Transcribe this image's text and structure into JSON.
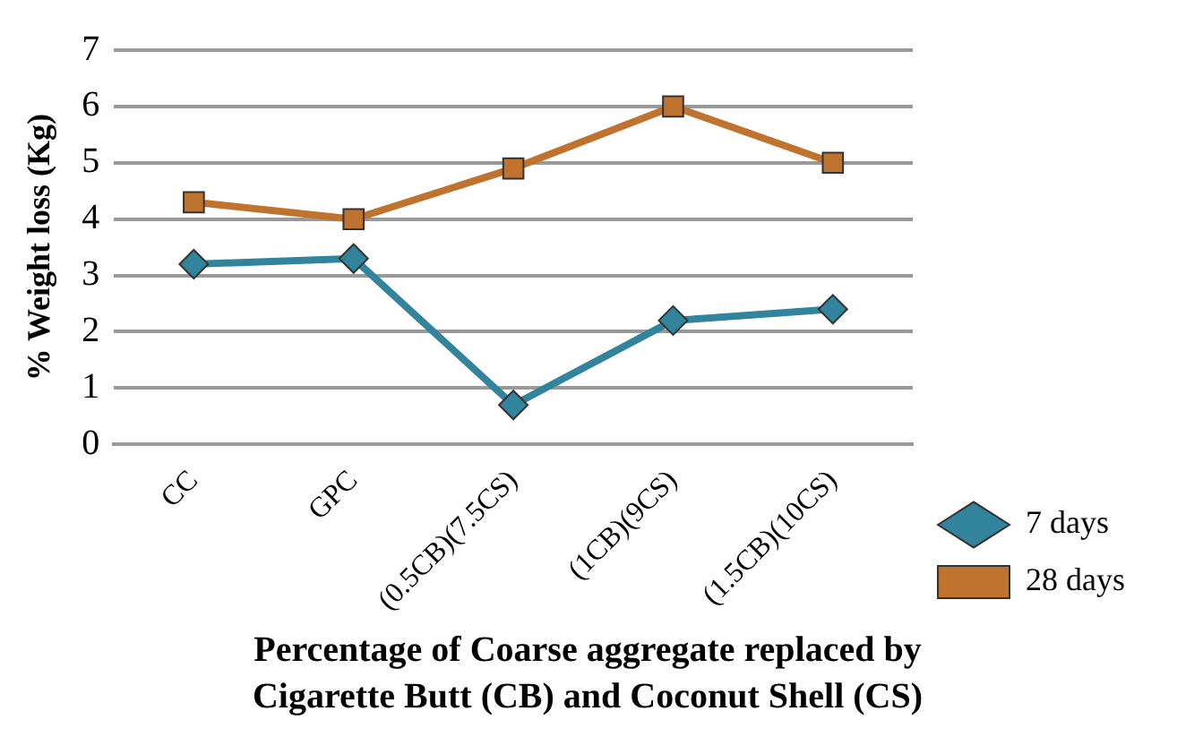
{
  "chart_data": {
    "type": "line",
    "xlabel": "Percentage of Coarse aggregate replaced by Cigarette Butt (CB) and Coconut Shell (CS)",
    "ylabel": "% Weight loss (Kg)",
    "categories": [
      "CC",
      "GPC",
      "(0.5CB)(7.5CS)",
      "(1CB)(9CS)",
      "(1.5CB)(10CS)"
    ],
    "series": [
      {
        "name": "7 days",
        "color": "#31849b",
        "marker": "diamond",
        "values": [
          3.2,
          3.3,
          0.7,
          2.2,
          2.4
        ]
      },
      {
        "name": "28 days",
        "color": "#c0722f",
        "marker": "square",
        "values": [
          4.3,
          4.0,
          4.9,
          6.0,
          5.0
        ]
      }
    ],
    "ylim": [
      0,
      7
    ],
    "yticks": [
      0,
      1,
      2,
      3,
      4,
      5,
      6,
      7
    ],
    "grid": "y",
    "legend": "right"
  }
}
